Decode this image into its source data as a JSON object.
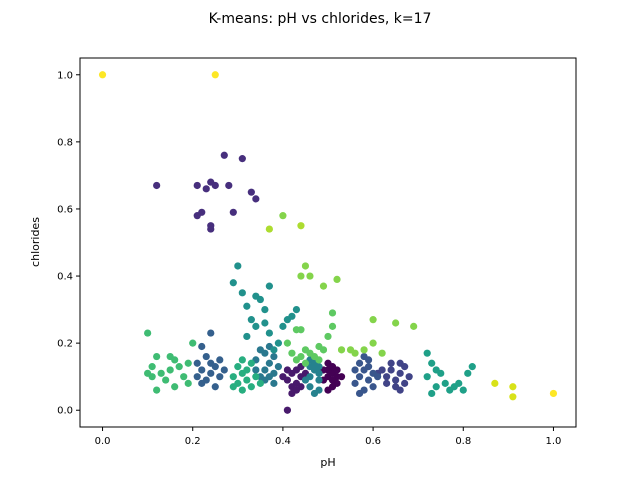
{
  "chart_data": {
    "type": "scatter",
    "title": "K-means: pH vs chlorides, k=17",
    "xlabel": "pH",
    "ylabel": "chlorides",
    "xlim": [
      -0.05,
      1.05
    ],
    "ylim": [
      -0.05,
      1.05
    ],
    "xticks": [
      0.0,
      0.2,
      0.4,
      0.6,
      0.8,
      1.0
    ],
    "yticks": [
      0.0,
      0.2,
      0.4,
      0.6,
      0.8,
      1.0
    ],
    "xtick_labels": [
      "0.0",
      "0.2",
      "0.4",
      "0.6",
      "0.8",
      "1.0"
    ],
    "ytick_labels": [
      "0.0",
      "0.2",
      "0.4",
      "0.6",
      "0.8",
      "1.0"
    ],
    "grid": false,
    "colormap": "viridis",
    "clusters": [
      {
        "id": 0,
        "color": "#440154",
        "points": [
          [
            0.49,
            0.09
          ],
          [
            0.5,
            0.1
          ],
          [
            0.51,
            0.11
          ],
          [
            0.52,
            0.08
          ],
          [
            0.5,
            0.12
          ],
          [
            0.51,
            0.07
          ],
          [
            0.52,
            0.1
          ],
          [
            0.49,
            0.12
          ],
          [
            0.5,
            0.06
          ],
          [
            0.52,
            0.12
          ],
          [
            0.51,
            0.09
          ],
          [
            0.53,
            0.1
          ],
          [
            0.5,
            0.14
          ],
          [
            0.51,
            0.13
          ]
        ]
      },
      {
        "id": 1,
        "color": "#481A6C",
        "points": [
          [
            0.41,
            0.09
          ],
          [
            0.42,
            0.11
          ],
          [
            0.43,
            0.08
          ],
          [
            0.44,
            0.1
          ],
          [
            0.42,
            0.07
          ],
          [
            0.43,
            0.12
          ],
          [
            0.41,
            0.12
          ],
          [
            0.44,
            0.07
          ],
          [
            0.42,
            0.05
          ],
          [
            0.4,
            0.1
          ],
          [
            0.45,
            0.11
          ],
          [
            0.43,
            0.06
          ],
          [
            0.41,
            0.0
          ],
          [
            0.44,
            0.13
          ]
        ]
      },
      {
        "id": 2,
        "color": "#472F7D",
        "points": [
          [
            0.12,
            0.67
          ],
          [
            0.21,
            0.67
          ],
          [
            0.21,
            0.58
          ],
          [
            0.22,
            0.59
          ],
          [
            0.23,
            0.66
          ],
          [
            0.24,
            0.68
          ],
          [
            0.24,
            0.54
          ],
          [
            0.24,
            0.55
          ],
          [
            0.25,
            0.67
          ],
          [
            0.27,
            0.76
          ],
          [
            0.28,
            0.67
          ],
          [
            0.29,
            0.59
          ],
          [
            0.31,
            0.75
          ],
          [
            0.33,
            0.65
          ],
          [
            0.34,
            0.63
          ]
        ]
      },
      {
        "id": 3,
        "color": "#414487",
        "points": [
          [
            0.63,
            0.1
          ],
          [
            0.64,
            0.12
          ],
          [
            0.65,
            0.09
          ],
          [
            0.66,
            0.11
          ],
          [
            0.67,
            0.08
          ],
          [
            0.64,
            0.14
          ],
          [
            0.62,
            0.12
          ],
          [
            0.66,
            0.14
          ],
          [
            0.68,
            0.1
          ],
          [
            0.65,
            0.07
          ],
          [
            0.63,
            0.08
          ],
          [
            0.67,
            0.13
          ],
          [
            0.61,
            0.11
          ],
          [
            0.66,
            0.06
          ]
        ]
      },
      {
        "id": 4,
        "color": "#39568C",
        "points": [
          [
            0.57,
            0.1
          ],
          [
            0.58,
            0.12
          ],
          [
            0.59,
            0.09
          ],
          [
            0.6,
            0.11
          ],
          [
            0.56,
            0.08
          ],
          [
            0.59,
            0.13
          ],
          [
            0.57,
            0.14
          ],
          [
            0.6,
            0.07
          ],
          [
            0.58,
            0.06
          ],
          [
            0.56,
            0.12
          ],
          [
            0.61,
            0.1
          ],
          [
            0.59,
            0.15
          ],
          [
            0.57,
            0.05
          ],
          [
            0.58,
            0.16
          ]
        ]
      },
      {
        "id": 5,
        "color": "#35608D",
        "points": [
          [
            0.21,
            0.1
          ],
          [
            0.22,
            0.12
          ],
          [
            0.23,
            0.09
          ],
          [
            0.24,
            0.11
          ],
          [
            0.25,
            0.13
          ],
          [
            0.22,
            0.08
          ],
          [
            0.26,
            0.1
          ],
          [
            0.24,
            0.14
          ],
          [
            0.23,
            0.16
          ],
          [
            0.25,
            0.07
          ],
          [
            0.21,
            0.14
          ],
          [
            0.27,
            0.12
          ],
          [
            0.22,
            0.19
          ],
          [
            0.24,
            0.23
          ],
          [
            0.26,
            0.15
          ]
        ]
      },
      {
        "id": 6,
        "color": "#2A788E",
        "points": [
          [
            0.35,
            0.1
          ],
          [
            0.36,
            0.12
          ],
          [
            0.37,
            0.14
          ],
          [
            0.38,
            0.11
          ],
          [
            0.34,
            0.15
          ],
          [
            0.36,
            0.17
          ],
          [
            0.38,
            0.16
          ],
          [
            0.35,
            0.18
          ],
          [
            0.37,
            0.19
          ],
          [
            0.39,
            0.13
          ],
          [
            0.36,
            0.09
          ],
          [
            0.38,
            0.08
          ],
          [
            0.34,
            0.12
          ],
          [
            0.37,
            0.1
          ]
        ]
      },
      {
        "id": 7,
        "color": "#26828E",
        "points": [
          [
            0.46,
            0.1
          ],
          [
            0.47,
            0.12
          ],
          [
            0.48,
            0.09
          ],
          [
            0.46,
            0.07
          ],
          [
            0.47,
            0.14
          ],
          [
            0.48,
            0.11
          ],
          [
            0.46,
            0.13
          ],
          [
            0.45,
            0.09
          ],
          [
            0.48,
            0.06
          ],
          [
            0.47,
            0.05
          ],
          [
            0.46,
            0.15
          ],
          [
            0.48,
            0.13
          ]
        ]
      },
      {
        "id": 8,
        "color": "#21918C",
        "points": [
          [
            0.3,
            0.43
          ],
          [
            0.29,
            0.38
          ],
          [
            0.31,
            0.35
          ],
          [
            0.34,
            0.34
          ],
          [
            0.35,
            0.33
          ],
          [
            0.32,
            0.31
          ],
          [
            0.36,
            0.3
          ],
          [
            0.37,
            0.37
          ],
          [
            0.33,
            0.27
          ],
          [
            0.34,
            0.25
          ],
          [
            0.36,
            0.26
          ],
          [
            0.32,
            0.22
          ],
          [
            0.37,
            0.23
          ],
          [
            0.39,
            0.2
          ],
          [
            0.4,
            0.25
          ],
          [
            0.41,
            0.27
          ],
          [
            0.42,
            0.28
          ],
          [
            0.43,
            0.3
          ],
          [
            0.38,
            0.18
          ]
        ]
      },
      {
        "id": 9,
        "color": "#1FA088",
        "points": [
          [
            0.72,
            0.17
          ],
          [
            0.73,
            0.14
          ],
          [
            0.74,
            0.12
          ],
          [
            0.75,
            0.11
          ],
          [
            0.72,
            0.1
          ],
          [
            0.76,
            0.08
          ],
          [
            0.74,
            0.07
          ],
          [
            0.77,
            0.06
          ],
          [
            0.79,
            0.08
          ],
          [
            0.8,
            0.06
          ],
          [
            0.81,
            0.11
          ],
          [
            0.82,
            0.13
          ],
          [
            0.73,
            0.05
          ],
          [
            0.78,
            0.07
          ]
        ]
      },
      {
        "id": 10,
        "color": "#28AE80",
        "points": [
          [
            0.29,
            0.1
          ],
          [
            0.3,
            0.08
          ],
          [
            0.31,
            0.11
          ],
          [
            0.32,
            0.09
          ],
          [
            0.33,
            0.07
          ],
          [
            0.3,
            0.13
          ],
          [
            0.34,
            0.1
          ],
          [
            0.31,
            0.06
          ],
          [
            0.32,
            0.12
          ],
          [
            0.29,
            0.07
          ],
          [
            0.33,
            0.14
          ],
          [
            0.35,
            0.08
          ],
          [
            0.31,
            0.15
          ]
        ]
      },
      {
        "id": 11,
        "color": "#3FBC73",
        "points": [
          [
            0.1,
            0.23
          ],
          [
            0.11,
            0.1
          ],
          [
            0.11,
            0.13
          ],
          [
            0.12,
            0.06
          ],
          [
            0.12,
            0.16
          ],
          [
            0.13,
            0.11
          ],
          [
            0.14,
            0.09
          ],
          [
            0.15,
            0.12
          ],
          [
            0.15,
            0.16
          ],
          [
            0.16,
            0.07
          ],
          [
            0.16,
            0.15
          ],
          [
            0.17,
            0.13
          ],
          [
            0.18,
            0.1
          ],
          [
            0.19,
            0.14
          ],
          [
            0.2,
            0.2
          ],
          [
            0.19,
            0.08
          ],
          [
            0.1,
            0.11
          ]
        ]
      },
      {
        "id": 12,
        "color": "#5EC962",
        "points": [
          [
            0.41,
            0.2
          ],
          [
            0.42,
            0.17
          ],
          [
            0.43,
            0.15
          ],
          [
            0.44,
            0.24
          ],
          [
            0.45,
            0.18
          ],
          [
            0.46,
            0.17
          ],
          [
            0.47,
            0.16
          ],
          [
            0.48,
            0.19
          ],
          [
            0.49,
            0.18
          ],
          [
            0.5,
            0.22
          ],
          [
            0.51,
            0.29
          ],
          [
            0.51,
            0.25
          ],
          [
            0.44,
            0.16
          ],
          [
            0.45,
            0.14
          ],
          [
            0.48,
            0.15
          ],
          [
            0.43,
            0.24
          ]
        ]
      },
      {
        "id": 13,
        "color": "#84D44B",
        "points": [
          [
            0.4,
            0.58
          ],
          [
            0.44,
            0.4
          ],
          [
            0.45,
            0.43
          ],
          [
            0.46,
            0.4
          ],
          [
            0.49,
            0.37
          ],
          [
            0.52,
            0.39
          ],
          [
            0.53,
            0.18
          ],
          [
            0.55,
            0.18
          ],
          [
            0.56,
            0.17
          ],
          [
            0.58,
            0.18
          ],
          [
            0.6,
            0.27
          ],
          [
            0.6,
            0.2
          ],
          [
            0.65,
            0.26
          ],
          [
            0.69,
            0.25
          ],
          [
            0.62,
            0.17
          ]
        ]
      },
      {
        "id": 14,
        "color": "#ADDC30",
        "points": [
          [
            0.37,
            0.54
          ],
          [
            0.44,
            0.55
          ]
        ]
      },
      {
        "id": 15,
        "color": "#D8E219",
        "points": [
          [
            0.87,
            0.08
          ],
          [
            0.91,
            0.07
          ],
          [
            0.91,
            0.04
          ]
        ]
      },
      {
        "id": 16,
        "color": "#FDE725",
        "points": [
          [
            0.0,
            1.0
          ],
          [
            0.25,
            1.0
          ],
          [
            1.0,
            0.05
          ]
        ]
      }
    ]
  }
}
